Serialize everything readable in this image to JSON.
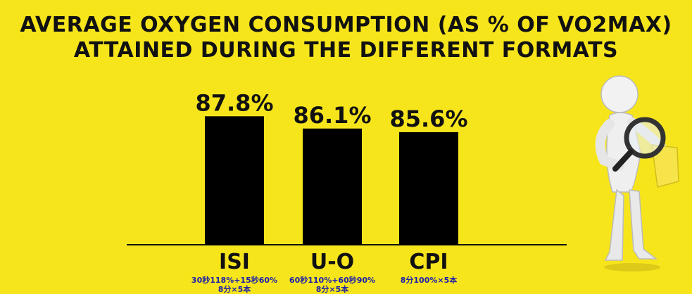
{
  "title": {
    "line1": "AVERAGE OXYGEN CONSUMPTION (AS % OF VO2MAX)",
    "line2": "ATTAINED DURING THE DIFFERENT FORMATS"
  },
  "chart_data": {
    "type": "bar",
    "title": "AVERAGE OXYGEN CONSUMPTION (AS % OF VO2MAX) ATTAINED DURING THE DIFFERENT FORMATS",
    "categories": [
      "ISI",
      "U-O",
      "CPI"
    ],
    "values": [
      87.8,
      86.1,
      85.6
    ],
    "value_labels": [
      "87.8%",
      "86.1%",
      "85.6%"
    ],
    "xlabel": "",
    "ylabel": "",
    "ylim": [
      70,
      89
    ],
    "grid": false,
    "bar_color": "#000000"
  },
  "subtitles": [
    {
      "line1": "30秒118%+15秒60%",
      "line2": "8分×5本"
    },
    {
      "line1": "60秒110%+60秒90%",
      "line2": "8分×5本"
    },
    {
      "line1": "8分100%×5本",
      "line2": ""
    }
  ],
  "colors": {
    "background": "#f7e51c",
    "bar": "#000000",
    "subtitle_text": "#1d21a8"
  },
  "decoration": {
    "figure_icon": "magnifier-person-icon"
  }
}
